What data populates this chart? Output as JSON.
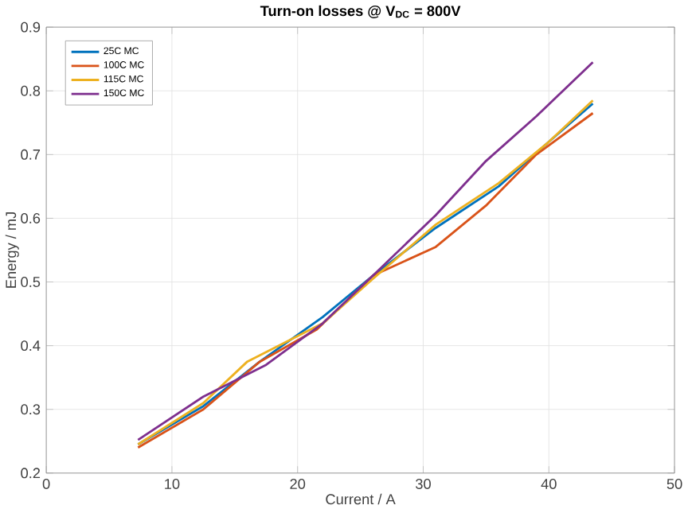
{
  "chart_data": {
    "type": "line",
    "title": "Turn-on losses @ V$_{DC}$ = 800V",
    "xlabel": "Current / A",
    "ylabel": "Energy / mJ",
    "xlim": [
      0,
      50
    ],
    "xticks": [
      0,
      10,
      20,
      30,
      40,
      50
    ],
    "ylim": [
      0.2,
      0.9
    ],
    "yticks": [
      0.2,
      0.3,
      0.4,
      0.5,
      0.6,
      0.7,
      0.8,
      0.9
    ],
    "grid": true,
    "legend": "top left",
    "marker": "none",
    "line_style": "solid",
    "series": [
      {
        "name": "25C MC",
        "color": "#0072bd",
        "x": [
          7.3,
          12.5,
          17,
          22,
          26,
          31,
          36,
          40,
          43.5
        ],
        "values": [
          0.245,
          0.305,
          0.375,
          0.445,
          0.51,
          0.585,
          0.65,
          0.72,
          0.78
        ]
      },
      {
        "name": "100C MC",
        "color": "#d95319",
        "x": [
          7.3,
          12.5,
          17,
          21.5,
          26,
          31,
          35,
          39,
          43.5
        ],
        "values": [
          0.24,
          0.3,
          0.375,
          0.425,
          0.51,
          0.555,
          0.62,
          0.7,
          0.765
        ]
      },
      {
        "name": "115C MC",
        "color": "#edb120",
        "x": [
          7.3,
          12.5,
          16,
          22,
          26,
          31,
          36,
          40,
          43.5
        ],
        "values": [
          0.245,
          0.31,
          0.375,
          0.435,
          0.505,
          0.59,
          0.655,
          0.72,
          0.785
        ]
      },
      {
        "name": "150C MC",
        "color": "#7e2f8e",
        "x": [
          7.3,
          12.5,
          17.5,
          22,
          26,
          31,
          35,
          39,
          43.5
        ],
        "values": [
          0.252,
          0.32,
          0.37,
          0.435,
          0.51,
          0.605,
          0.69,
          0.76,
          0.845
        ]
      }
    ]
  }
}
